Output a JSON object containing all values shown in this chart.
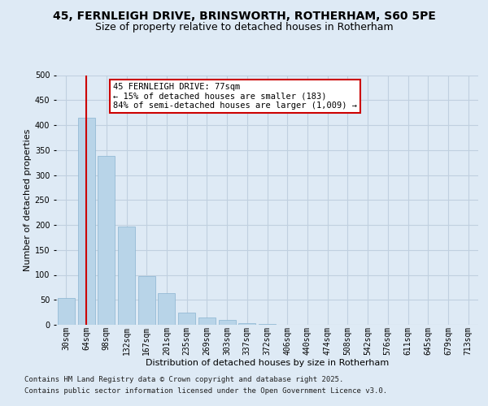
{
  "title": "45, FERNLEIGH DRIVE, BRINSWORTH, ROTHERHAM, S60 5PE",
  "subtitle": "Size of property relative to detached houses in Rotherham",
  "bar_values": [
    54,
    415,
    338,
    196,
    97,
    63,
    25,
    14,
    10,
    4,
    2,
    0,
    0,
    0,
    0,
    0,
    0,
    0,
    0,
    0,
    0
  ],
  "categories": [
    "30sqm",
    "64sqm",
    "98sqm",
    "132sqm",
    "167sqm",
    "201sqm",
    "235sqm",
    "269sqm",
    "303sqm",
    "337sqm",
    "372sqm",
    "406sqm",
    "440sqm",
    "474sqm",
    "508sqm",
    "542sqm",
    "576sqm",
    "611sqm",
    "645sqm",
    "679sqm",
    "713sqm"
  ],
  "bar_color": "#b8d4e8",
  "bar_edge_color": "#8ab4d0",
  "vline_x": 1,
  "vline_color": "#cc0000",
  "annotation_title": "45 FERNLEIGH DRIVE: 77sqm",
  "annotation_line1": "← 15% of detached houses are smaller (183)",
  "annotation_line2": "84% of semi-detached houses are larger (1,009) →",
  "annotation_box_color": "#ffffff",
  "annotation_box_edge": "#cc0000",
  "ylabel": "Number of detached properties",
  "xlabel": "Distribution of detached houses by size in Rotherham",
  "ylim": [
    0,
    500
  ],
  "yticks": [
    0,
    50,
    100,
    150,
    200,
    250,
    300,
    350,
    400,
    450,
    500
  ],
  "footnote1": "Contains HM Land Registry data © Crown copyright and database right 2025.",
  "footnote2": "Contains public sector information licensed under the Open Government Licence v3.0.",
  "bg_color": "#deeaf5",
  "plot_bg_color": "#deeaf5",
  "grid_color": "#c0d0e0",
  "title_fontsize": 10,
  "subtitle_fontsize": 9,
  "axis_label_fontsize": 8,
  "tick_fontsize": 7,
  "footnote_fontsize": 6.5
}
